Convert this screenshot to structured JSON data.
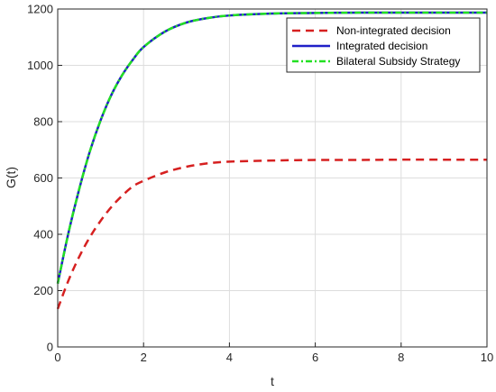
{
  "chart_data": {
    "type": "line",
    "title": "",
    "xlabel": "t",
    "ylabel": "G(t)",
    "xlim": [
      0,
      10
    ],
    "ylim": [
      0,
      1200
    ],
    "xticks": [
      0,
      2,
      4,
      6,
      8,
      10
    ],
    "yticks": [
      0,
      200,
      400,
      600,
      800,
      1000,
      1200
    ],
    "grid": true,
    "legend_position": "top-right",
    "x": [
      0,
      0.25,
      0.5,
      0.75,
      1,
      1.25,
      1.5,
      1.75,
      2,
      2.5,
      3,
      3.5,
      4,
      5,
      6,
      7,
      8,
      9,
      10
    ],
    "series": [
      {
        "name": "Non-integrated decision",
        "color": "#d62020",
        "style": "dashed",
        "values": [
          135,
          236,
          320,
          390,
          448,
          497,
          537,
          570,
          590,
          620,
          640,
          652,
          658,
          662,
          664,
          664,
          665,
          665,
          665
        ]
      },
      {
        "name": "Integrated decision",
        "color": "#1f1fc8",
        "style": "solid",
        "values": [
          225,
          405,
          560,
          695,
          805,
          895,
          965,
          1020,
          1065,
          1120,
          1152,
          1168,
          1177,
          1184,
          1186,
          1187,
          1187,
          1187,
          1187
        ]
      },
      {
        "name": "Bilateral Subsidy Strategy",
        "color": "#22e022",
        "style": "dashdot",
        "values": [
          225,
          405,
          560,
          695,
          805,
          895,
          965,
          1020,
          1065,
          1120,
          1152,
          1168,
          1177,
          1184,
          1186,
          1187,
          1187,
          1187,
          1187
        ]
      }
    ]
  }
}
